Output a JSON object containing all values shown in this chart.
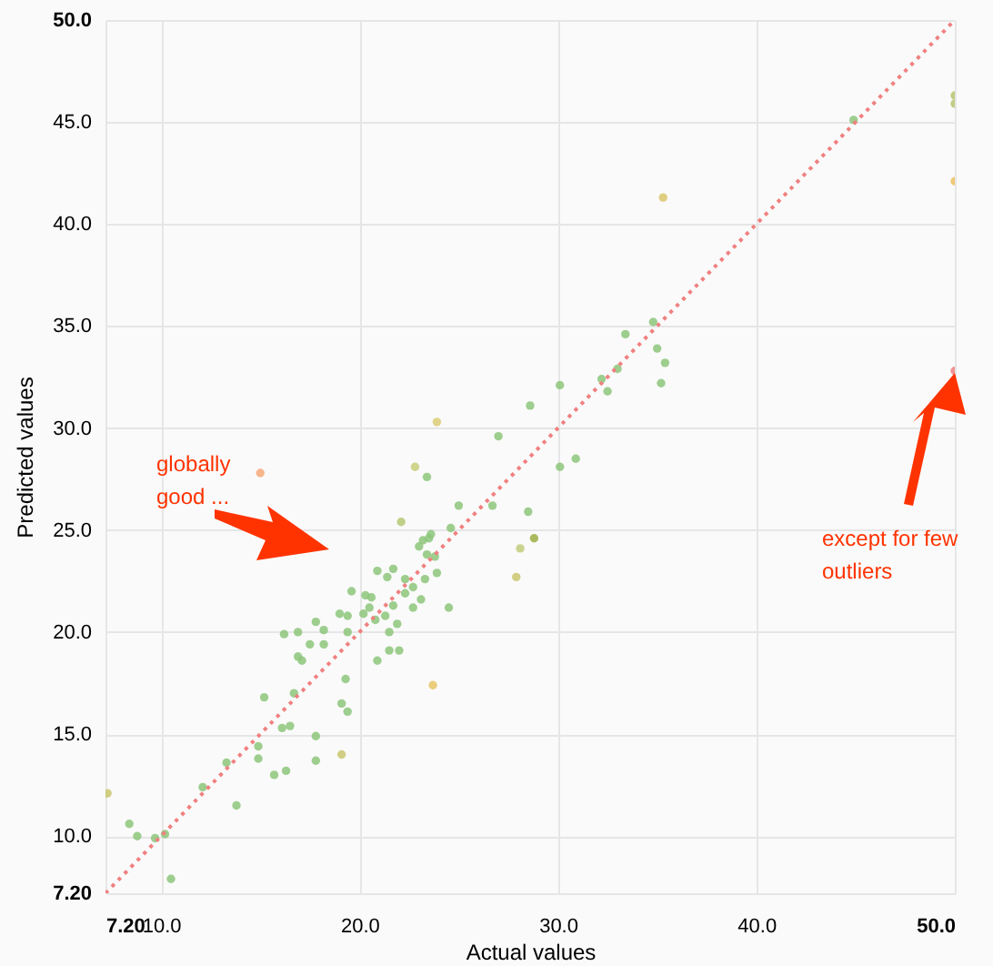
{
  "chart_data": {
    "type": "scatter",
    "xlabel": "Actual values",
    "ylabel": "Predicted values",
    "xlim": [
      7.2,
      50
    ],
    "ylim": [
      7.2,
      50
    ],
    "xticks": [
      {
        "value": 7.2,
        "label": "7.20"
      },
      {
        "value": 10,
        "label": "10.0"
      },
      {
        "value": 20,
        "label": "20.0"
      },
      {
        "value": 30,
        "label": "30.0"
      },
      {
        "value": 40,
        "label": "40.0"
      },
      {
        "value": 50,
        "label": "50.0"
      }
    ],
    "yticks": [
      {
        "value": 7.2,
        "label": "7.20"
      },
      {
        "value": 10,
        "label": "10.0"
      },
      {
        "value": 15,
        "label": "15.0"
      },
      {
        "value": 20,
        "label": "20.0"
      },
      {
        "value": 25,
        "label": "25.0"
      },
      {
        "value": 30,
        "label": "30.0"
      },
      {
        "value": 35,
        "label": "35.0"
      },
      {
        "value": 40,
        "label": "40.0"
      },
      {
        "value": 45,
        "label": "45.0"
      },
      {
        "value": 50,
        "label": "50.0"
      }
    ],
    "grid": true,
    "annotations": [
      "globally good ...",
      "except for few outliers"
    ],
    "series": [
      {
        "type": "scatter",
        "marker": "circle",
        "x": [
          50,
          50,
          50,
          44.9,
          35.3,
          34.8,
          33.4,
          35.0,
          35.4,
          33.0,
          32.2,
          32.5,
          35.2,
          30.1,
          28.6,
          30.1,
          30.9,
          28.5,
          28.8,
          28.1,
          27.9,
          50,
          15.0,
          23.9,
          22.8,
          23.4,
          27.0,
          26.7,
          25.0,
          24.6,
          22.1,
          23.6,
          23.5,
          23.2,
          23.0,
          23.4,
          23.8,
          23.9,
          20.9,
          21.7,
          21.4,
          22.3,
          23.3,
          22.7,
          22.3,
          19.6,
          23.1,
          20.3,
          20.6,
          21.7,
          22.7,
          24.5,
          20.5,
          20.2,
          19.0,
          19.4,
          21.3,
          20.8,
          21.9,
          17.8,
          18.2,
          16.9,
          16.2,
          19.4,
          21.5,
          16.9,
          17.5,
          18.2,
          17.1,
          20.9,
          21.5,
          22.0,
          19.3,
          23.7,
          15.2,
          16.7,
          19.1,
          19.4,
          16.1,
          16.5,
          17.8,
          14.9,
          14.9,
          19.1,
          17.8,
          13.3,
          15.7,
          16.3,
          12.1,
          13.8,
          7.3,
          8.4,
          8.8,
          9.7,
          10.2,
          10.5
        ],
        "values": [
          46.3,
          45.9,
          42.1,
          45.1,
          41.3,
          35.2,
          34.6,
          33.9,
          33.2,
          32.9,
          32.4,
          31.8,
          32.2,
          32.1,
          31.1,
          28.1,
          28.5,
          25.9,
          24.6,
          24.1,
          22.7,
          32.8,
          27.8,
          30.3,
          28.1,
          27.6,
          29.6,
          26.2,
          26.2,
          25.1,
          25.4,
          24.8,
          24.6,
          24.5,
          24.2,
          23.8,
          23.7,
          22.9,
          23.0,
          23.1,
          22.7,
          22.6,
          22.6,
          22.2,
          21.9,
          22.0,
          21.6,
          21.8,
          21.7,
          21.3,
          21.2,
          21.2,
          21.2,
          20.9,
          20.9,
          20.8,
          20.8,
          20.6,
          20.4,
          20.5,
          20.1,
          20.0,
          19.9,
          20.0,
          20.0,
          18.8,
          19.4,
          19.4,
          18.6,
          18.6,
          19.1,
          19.1,
          17.7,
          17.4,
          16.8,
          17.0,
          16.5,
          16.1,
          15.3,
          15.4,
          14.9,
          14.4,
          13.8,
          14.0,
          13.7,
          13.6,
          13.0,
          13.2,
          12.4,
          11.5,
          12.1,
          10.6,
          10.0,
          9.9,
          10.1,
          7.9
        ],
        "colors": [
          "#b5c46e",
          "#b5c46e",
          "#f0c060",
          "#8cc57a",
          "#d9c66a",
          "#8cc57a",
          "#8cc57a",
          "#8cc57a",
          "#8cc57a",
          "#8cc57a",
          "#8cc57a",
          "#8cc57a",
          "#8cc57a",
          "#8cc57a",
          "#8cc57a",
          "#8cc57a",
          "#8cc57a",
          "#8cc57a",
          "#9cae42",
          "#c2cc7a",
          "#c9c66e",
          "#f08080",
          "#f5a878",
          "#dccb72",
          "#c8cc78",
          "#8cc57a",
          "#8cc57a",
          "#8cc57a",
          "#8cc57a",
          "#8cc57a",
          "#b4c874",
          "#8cc57a",
          "#8cc57a",
          "#8cc57a",
          "#8cc57a",
          "#8cc57a",
          "#8cc57a",
          "#8cc57a",
          "#8cc57a",
          "#8cc57a",
          "#8cc57a",
          "#8cc57a",
          "#8cc57a",
          "#8cc57a",
          "#8cc57a",
          "#8cc57a",
          "#8cc57a",
          "#8cc57a",
          "#8cc57a",
          "#8cc57a",
          "#8cc57a",
          "#8cc57a",
          "#8cc57a",
          "#8cc57a",
          "#8cc57a",
          "#8cc57a",
          "#8cc57a",
          "#8cc57a",
          "#8cc57a",
          "#8cc57a",
          "#8cc57a",
          "#8cc57a",
          "#8cc57a",
          "#8cc57a",
          "#8cc57a",
          "#8cc57a",
          "#8cc57a",
          "#8cc57a",
          "#8cc57a",
          "#8cc57a",
          "#8cc57a",
          "#8cc57a",
          "#8cc57a",
          "#e6c466",
          "#8cc57a",
          "#8cc57a",
          "#8cc57a",
          "#8cc57a",
          "#8cc57a",
          "#8cc57a",
          "#8cc57a",
          "#8cc57a",
          "#8cc57a",
          "#c9c66e",
          "#8cc57a",
          "#8cc57a",
          "#8cc57a",
          "#8cc57a",
          "#8cc57a",
          "#8cc57a",
          "#c9c66e",
          "#8cc57a",
          "#8cc57a",
          "#8cc57a",
          "#8cc57a",
          "#8cc57a"
        ]
      },
      {
        "type": "line",
        "x": [
          7.2,
          50
        ],
        "values": [
          7.2,
          50
        ],
        "color": "#f08080",
        "line_style": "dotted"
      }
    ]
  }
}
